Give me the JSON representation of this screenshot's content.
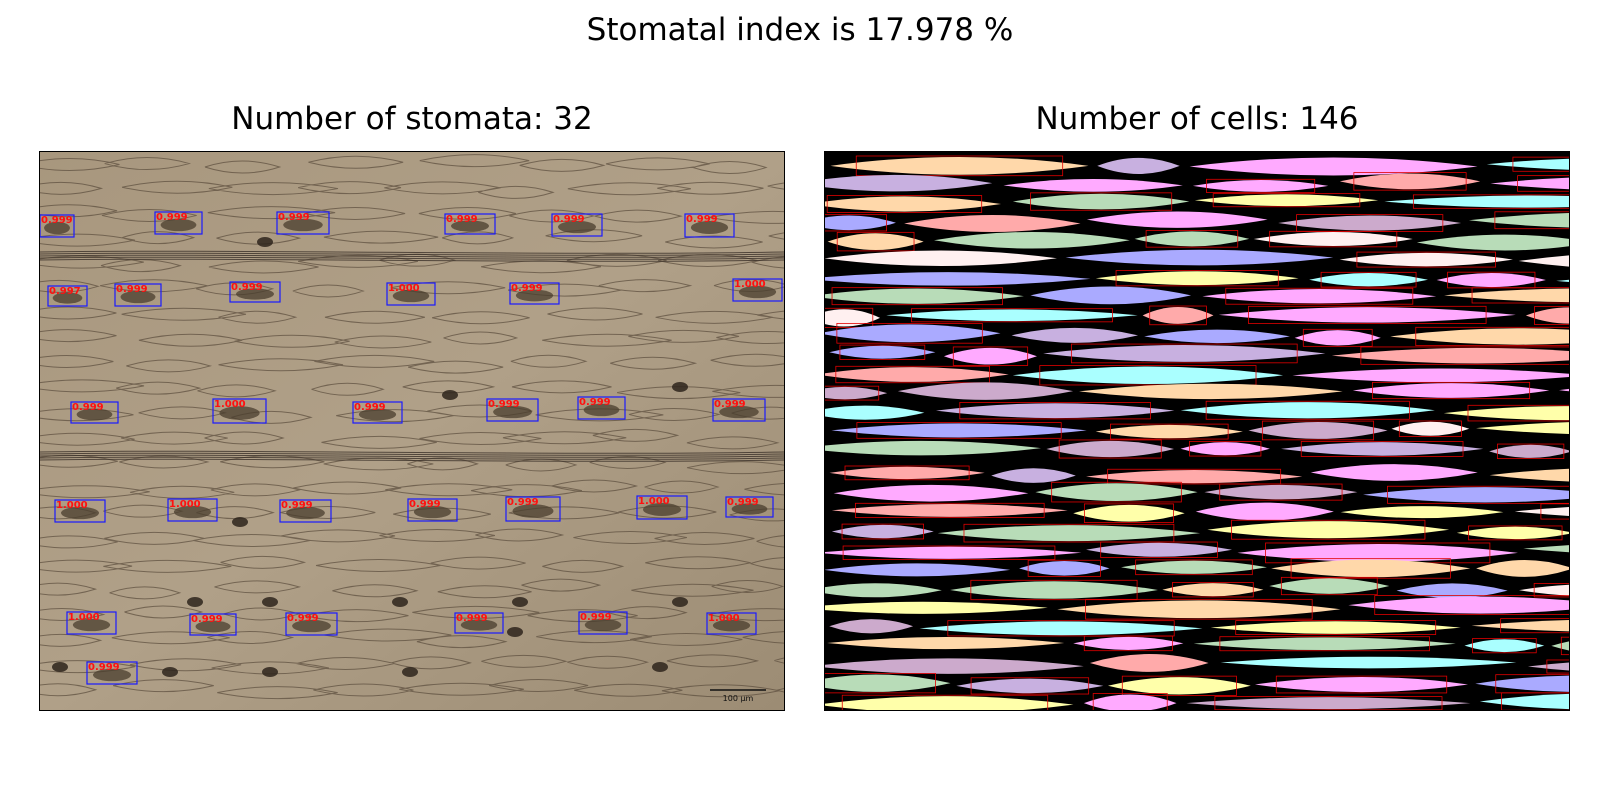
{
  "figure": {
    "suptitle": "Stomatal index is 17.978 %"
  },
  "left_panel": {
    "title": "Number of stomata: 32",
    "scale_bar_label": "100 µm",
    "box_color": "#1a1aff",
    "score_color": "#ff1010",
    "detections": [
      {
        "score": "0.999"
      },
      {
        "score": "0.999"
      },
      {
        "score": "0.999"
      },
      {
        "score": "0.999"
      },
      {
        "score": "0.999"
      },
      {
        "score": "0.999"
      },
      {
        "score": "0.997"
      },
      {
        "score": "0.999"
      },
      {
        "score": "0.999"
      },
      {
        "score": "1.000"
      },
      {
        "score": "0.999"
      },
      {
        "score": "1.000"
      },
      {
        "score": "0.999"
      },
      {
        "score": "1.000"
      },
      {
        "score": "0.999"
      },
      {
        "score": "0.999"
      },
      {
        "score": "0.999"
      },
      {
        "score": "0.999"
      },
      {
        "score": "1.000"
      },
      {
        "score": "1.000"
      },
      {
        "score": "0.999"
      },
      {
        "score": "0.999"
      },
      {
        "score": "0.999"
      },
      {
        "score": "1.000"
      },
      {
        "score": "0.999"
      },
      {
        "score": "1.000"
      },
      {
        "score": "0.999"
      },
      {
        "score": "0.999"
      },
      {
        "score": "0.999"
      },
      {
        "score": "0.999"
      },
      {
        "score": "1.000"
      },
      {
        "score": "0.999"
      }
    ]
  },
  "right_panel": {
    "title": "Number of cells: 146",
    "outline_color": "#e00000",
    "cell_palette": [
      "#ffaaaa",
      "#ffaaff",
      "#aaaaff",
      "#aaffff",
      "#ffffaa",
      "#ffd8aa",
      "#b8dcb8",
      "#c8b0e0",
      "#fff0f0",
      "#ccaacc"
    ]
  }
}
